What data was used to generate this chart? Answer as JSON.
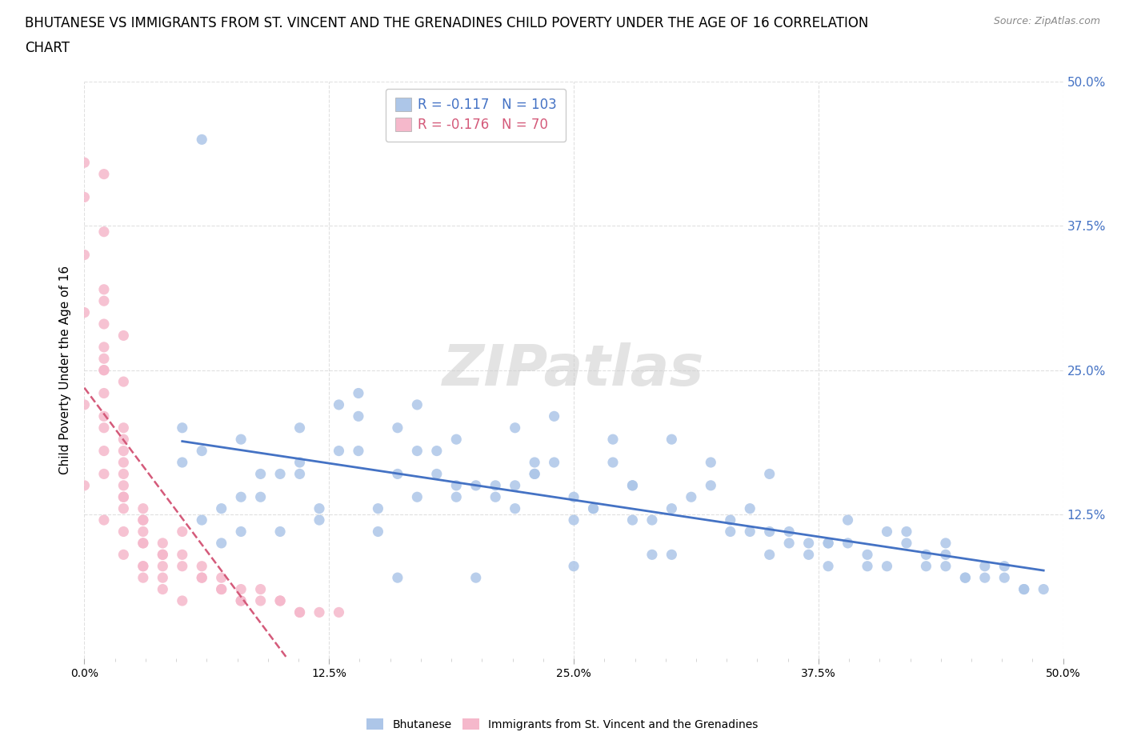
{
  "title_line1": "BHUTANESE VS IMMIGRANTS FROM ST. VINCENT AND THE GRENADINES CHILD POVERTY UNDER THE AGE OF 16 CORRELATION",
  "title_line2": "CHART",
  "source_text": "Source: ZipAtlas.com",
  "ylabel": "Child Poverty Under the Age of 16",
  "xlim": [
    0.0,
    0.5
  ],
  "ylim": [
    0.0,
    0.5
  ],
  "xtick_labels": [
    "0.0%",
    "",
    "",
    "",
    "",
    "",
    "",
    "",
    "12.5%",
    "",
    "",
    "",
    "",
    "",
    "",
    "",
    "25.0%",
    "",
    "",
    "",
    "",
    "",
    "",
    "",
    "37.5%",
    "",
    "",
    "",
    "",
    "",
    "",
    "",
    "50.0%"
  ],
  "xtick_vals": [
    0.0,
    0.015625,
    0.03125,
    0.046875,
    0.0625,
    0.078125,
    0.09375,
    0.109375,
    0.125,
    0.140625,
    0.15625,
    0.171875,
    0.1875,
    0.203125,
    0.21875,
    0.234375,
    0.25,
    0.265625,
    0.28125,
    0.296875,
    0.3125,
    0.328125,
    0.34375,
    0.359375,
    0.375,
    0.390625,
    0.40625,
    0.421875,
    0.4375,
    0.453125,
    0.46875,
    0.484375,
    0.5
  ],
  "ytick_vals": [
    0.125,
    0.25,
    0.375,
    0.5
  ],
  "ytick_labels_right": [
    "12.5%",
    "25.0%",
    "37.5%",
    "50.0%"
  ],
  "blue_R": -0.117,
  "blue_N": 103,
  "pink_R": -0.176,
  "pink_N": 70,
  "blue_color": "#adc6e8",
  "pink_color": "#f5b8cb",
  "blue_line_color": "#4472c4",
  "pink_line_color": "#d45a7a",
  "legend_label_blue": "Bhutanese",
  "legend_label_pink": "Immigrants from St. Vincent and the Grenadines",
  "grid_color": "#d9d9d9",
  "background_color": "#ffffff",
  "title_fontsize": 12,
  "axis_label_fontsize": 11,
  "blue_scatter_x": [
    0.27,
    0.19,
    0.38,
    0.23,
    0.08,
    0.31,
    0.46,
    0.12,
    0.42,
    0.17,
    0.35,
    0.28,
    0.14,
    0.44,
    0.22,
    0.09,
    0.33,
    0.16,
    0.4,
    0.26,
    0.11,
    0.37,
    0.2,
    0.48,
    0.06,
    0.3,
    0.15,
    0.43,
    0.24,
    0.1,
    0.36,
    0.18,
    0.45,
    0.25,
    0.07,
    0.32,
    0.13,
    0.47,
    0.21,
    0.39,
    0.29,
    0.05,
    0.34,
    0.16,
    0.41,
    0.23,
    0.08,
    0.38,
    0.19,
    0.46,
    0.12,
    0.27,
    0.35,
    0.22,
    0.49,
    0.14,
    0.42,
    0.3,
    0.06,
    0.25,
    0.17,
    0.44,
    0.09,
    0.33,
    0.2,
    0.37,
    0.11,
    0.28,
    0.15,
    0.43,
    0.24,
    0.07,
    0.36,
    0.18,
    0.45,
    0.29,
    0.13,
    0.4,
    0.21,
    0.48,
    0.1,
    0.32,
    0.16,
    0.38,
    0.26,
    0.05,
    0.41,
    0.23,
    0.14,
    0.34,
    0.08,
    0.3,
    0.19,
    0.47,
    0.25,
    0.11,
    0.39,
    0.22,
    0.44,
    0.17,
    0.35,
    0.28,
    0.06
  ],
  "blue_scatter_y": [
    0.19,
    0.15,
    0.08,
    0.17,
    0.11,
    0.14,
    0.07,
    0.13,
    0.1,
    0.22,
    0.16,
    0.12,
    0.18,
    0.09,
    0.2,
    0.14,
    0.11,
    0.16,
    0.08,
    0.13,
    0.17,
    0.1,
    0.15,
    0.06,
    0.12,
    0.19,
    0.13,
    0.09,
    0.21,
    0.16,
    0.11,
    0.18,
    0.07,
    0.14,
    0.1,
    0.17,
    0.22,
    0.08,
    0.15,
    0.12,
    0.09,
    0.2,
    0.13,
    0.07,
    0.11,
    0.16,
    0.19,
    0.1,
    0.14,
    0.08,
    0.12,
    0.17,
    0.09,
    0.15,
    0.06,
    0.21,
    0.11,
    0.13,
    0.18,
    0.08,
    0.14,
    0.1,
    0.16,
    0.12,
    0.07,
    0.09,
    0.2,
    0.15,
    0.11,
    0.08,
    0.17,
    0.13,
    0.1,
    0.16,
    0.07,
    0.12,
    0.18,
    0.09,
    0.14,
    0.06,
    0.11,
    0.15,
    0.2,
    0.1,
    0.13,
    0.17,
    0.08,
    0.16,
    0.23,
    0.11,
    0.14,
    0.09,
    0.19,
    0.07,
    0.12,
    0.16,
    0.1,
    0.13,
    0.08,
    0.18,
    0.11,
    0.15,
    0.45
  ],
  "pink_scatter_x": [
    0.01,
    0.0,
    0.02,
    0.01,
    0.03,
    0.0,
    0.02,
    0.01,
    0.04,
    0.0,
    0.03,
    0.01,
    0.02,
    0.0,
    0.05,
    0.01,
    0.03,
    0.02,
    0.06,
    0.01,
    0.04,
    0.0,
    0.02,
    0.03,
    0.01,
    0.07,
    0.02,
    0.05,
    0.01,
    0.03,
    0.0,
    0.04,
    0.02,
    0.08,
    0.01,
    0.06,
    0.03,
    0.02,
    0.09,
    0.01,
    0.05,
    0.02,
    0.07,
    0.03,
    0.1,
    0.01,
    0.04,
    0.02,
    0.08,
    0.03,
    0.11,
    0.01,
    0.06,
    0.02,
    0.09,
    0.04,
    0.12,
    0.01,
    0.07,
    0.03,
    0.1,
    0.02,
    0.13,
    0.01,
    0.08,
    0.04,
    0.11,
    0.02,
    0.05,
    0.01
  ],
  "pink_scatter_y": [
    0.12,
    0.15,
    0.09,
    0.18,
    0.07,
    0.22,
    0.11,
    0.25,
    0.06,
    0.3,
    0.08,
    0.2,
    0.14,
    0.35,
    0.05,
    0.16,
    0.1,
    0.28,
    0.07,
    0.23,
    0.09,
    0.4,
    0.13,
    0.08,
    0.31,
    0.06,
    0.17,
    0.11,
    0.26,
    0.12,
    0.43,
    0.07,
    0.19,
    0.05,
    0.21,
    0.08,
    0.1,
    0.24,
    0.06,
    0.27,
    0.09,
    0.15,
    0.07,
    0.13,
    0.05,
    0.29,
    0.08,
    0.2,
    0.06,
    0.11,
    0.04,
    0.32,
    0.07,
    0.16,
    0.05,
    0.1,
    0.04,
    0.25,
    0.06,
    0.12,
    0.05,
    0.18,
    0.04,
    0.37,
    0.05,
    0.09,
    0.04,
    0.14,
    0.08,
    0.42
  ]
}
